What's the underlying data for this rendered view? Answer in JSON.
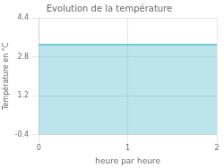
{
  "chart_data": {
    "type": "area",
    "title": "Evolution de la température",
    "xlabel": "heure par heure",
    "ylabel": "Température en °C",
    "x": [
      0,
      2
    ],
    "series": [
      {
        "color": "#55bbcc",
        "values": [
          3.3,
          3.3
        ]
      }
    ],
    "xlim": [
      0,
      2
    ],
    "ylim": [
      -0.4,
      4.4
    ],
    "xticks": [
      0,
      1,
      2
    ],
    "yticks": [
      -0.4,
      1.2,
      2.8,
      4.4
    ],
    "grid": true
  }
}
